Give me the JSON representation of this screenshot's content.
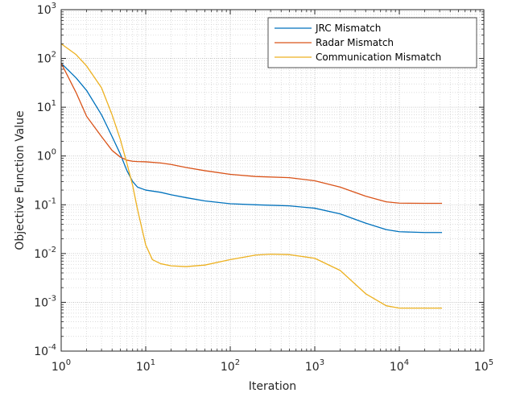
{
  "chart_data": {
    "type": "line",
    "title": "",
    "xlabel": "Iteration",
    "ylabel": "Objective Function Value",
    "xscale": "log",
    "yscale": "log",
    "xlim": [
      1,
      100000
    ],
    "ylim": [
      0.0001,
      1000
    ],
    "grid": true,
    "minor_grid": true,
    "legend_position": "top-right",
    "x_ticks": [
      {
        "value": 1,
        "base": "10",
        "exp": "0"
      },
      {
        "value": 10,
        "base": "10",
        "exp": "1"
      },
      {
        "value": 100,
        "base": "10",
        "exp": "2"
      },
      {
        "value": 1000,
        "base": "10",
        "exp": "3"
      },
      {
        "value": 10000,
        "base": "10",
        "exp": "4"
      },
      {
        "value": 100000,
        "base": "10",
        "exp": "5"
      }
    ],
    "y_ticks": [
      {
        "value": 0.0001,
        "base": "10",
        "exp": "-4"
      },
      {
        "value": 0.001,
        "base": "10",
        "exp": "-3"
      },
      {
        "value": 0.01,
        "base": "10",
        "exp": "-2"
      },
      {
        "value": 0.1,
        "base": "10",
        "exp": "-1"
      },
      {
        "value": 1,
        "base": "10",
        "exp": "0"
      },
      {
        "value": 10,
        "base": "10",
        "exp": "1"
      },
      {
        "value": 100,
        "base": "10",
        "exp": "2"
      },
      {
        "value": 1000,
        "base": "10",
        "exp": "3"
      }
    ],
    "series": [
      {
        "name": "JRC Mismatch",
        "color": "#0072BD",
        "x": [
          1,
          1.5,
          2,
          3,
          4,
          5,
          6,
          7,
          8,
          10,
          15,
          20,
          30,
          50,
          100,
          200,
          500,
          1000,
          2000,
          4000,
          7000,
          10000,
          20000,
          32000
        ],
        "y": [
          80,
          40,
          22,
          7,
          2.5,
          1.1,
          0.5,
          0.3,
          0.23,
          0.2,
          0.18,
          0.16,
          0.14,
          0.12,
          0.105,
          0.1,
          0.095,
          0.085,
          0.065,
          0.042,
          0.031,
          0.028,
          0.027,
          0.027
        ]
      },
      {
        "name": "Radar Mismatch",
        "color": "#D95319",
        "x": [
          1,
          1.5,
          2,
          3,
          4,
          5,
          6,
          7,
          8,
          10,
          15,
          20,
          30,
          50,
          100,
          200,
          500,
          1000,
          2000,
          4000,
          7000,
          10000,
          20000,
          32000
        ],
        "y": [
          80,
          20,
          6.5,
          2.5,
          1.3,
          0.95,
          0.82,
          0.78,
          0.77,
          0.76,
          0.72,
          0.67,
          0.58,
          0.5,
          0.42,
          0.38,
          0.36,
          0.31,
          0.23,
          0.15,
          0.115,
          0.108,
          0.107,
          0.107
        ]
      },
      {
        "name": "Communication Mismatch",
        "color": "#EDB120",
        "x": [
          1,
          1.5,
          2,
          3,
          4,
          5,
          6,
          7,
          8,
          10,
          12,
          15,
          20,
          30,
          50,
          100,
          200,
          300,
          500,
          1000,
          2000,
          4000,
          7000,
          10000,
          20000,
          32000
        ],
        "y": [
          200,
          120,
          70,
          25,
          7,
          2.2,
          0.7,
          0.25,
          0.08,
          0.015,
          0.0075,
          0.0062,
          0.0056,
          0.0054,
          0.0058,
          0.0075,
          0.0093,
          0.0097,
          0.0095,
          0.008,
          0.0045,
          0.0015,
          0.00085,
          0.00076,
          0.00076,
          0.00076
        ]
      }
    ]
  }
}
